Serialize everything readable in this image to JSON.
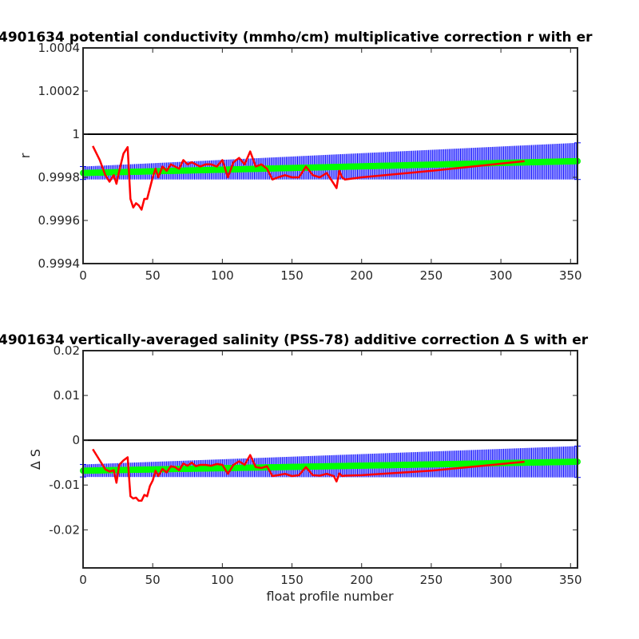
{
  "colors": {
    "median": "#ff0000",
    "fit": "#00ff00",
    "error_bars": "#0000ff",
    "reference": "#000000",
    "axes": "#262626"
  },
  "chart_data": [
    {
      "type": "line",
      "title": "4901634 potential conductivity (mmho/cm) multiplicative correction r with er",
      "xlabel": "",
      "ylabel": "r",
      "xlim": [
        0,
        355
      ],
      "ylim": [
        0.9994,
        1.0004
      ],
      "xticks": [
        "0",
        "50",
        "100",
        "150",
        "200",
        "250",
        "300",
        "350"
      ],
      "yticks": [
        "0.9994",
        "0.9996",
        "0.9998",
        "1",
        "1.0002",
        "1.0004"
      ],
      "grid": false,
      "reference_line": 1,
      "fit": {
        "x": [
          0,
          355
        ],
        "y": [
          0.99982,
          0.999875
        ],
        "err_start": 3e-05,
        "err_end": 8.5e-05
      },
      "series": [
        {
          "x": [
            7,
            12,
            16,
            19,
            22,
            24,
            26,
            29,
            32,
            34,
            36,
            38,
            40,
            42,
            44,
            46,
            48,
            50,
            52,
            54,
            57,
            60,
            63,
            66,
            69,
            72,
            75,
            78,
            81,
            84,
            88,
            92,
            96,
            100,
            104,
            108,
            112,
            116,
            120,
            124,
            128,
            132,
            136,
            140,
            145,
            150,
            155,
            160,
            165,
            170,
            175,
            180,
            182,
            184,
            186,
            188,
            200,
            250,
            317
          ],
          "y": [
            0.999945,
            0.99988,
            0.99981,
            0.99978,
            0.99981,
            0.99977,
            0.99983,
            0.99991,
            0.99994,
            0.9997,
            0.99966,
            0.99968,
            0.99967,
            0.99965,
            0.9997,
            0.9997,
            0.99975,
            0.9998,
            0.99984,
            0.9998,
            0.99985,
            0.99983,
            0.99986,
            0.99985,
            0.99984,
            0.99988,
            0.99986,
            0.99987,
            0.99986,
            0.99985,
            0.99986,
            0.99986,
            0.99985,
            0.99988,
            0.9998,
            0.99987,
            0.99989,
            0.99986,
            0.99992,
            0.99985,
            0.99986,
            0.99984,
            0.99979,
            0.9998,
            0.99981,
            0.9998,
            0.9998,
            0.99985,
            0.99981,
            0.9998,
            0.99982,
            0.99977,
            0.99975,
            0.99983,
            0.9998,
            0.99979,
            0.9998,
            0.99983,
            0.999875
          ]
        }
      ]
    },
    {
      "type": "line",
      "title": "4901634 vertically-averaged salinity (PSS-78) additive correction Δ S with er",
      "xlabel": "float profile number",
      "ylabel": "Δ S",
      "xlim": [
        0,
        355
      ],
      "ylim": [
        -0.0285,
        0.02
      ],
      "xticks": [
        "0",
        "50",
        "100",
        "150",
        "200",
        "250",
        "300",
        "350"
      ],
      "yticks": [
        "-0.02",
        "-0.01",
        "0",
        "0.01",
        "0.02"
      ],
      "grid": false,
      "reference_line": 0,
      "fit": {
        "x": [
          0,
          355
        ],
        "y": [
          -0.0068,
          -0.0048
        ],
        "err_start": 0.0014,
        "err_end": 0.0035
      },
      "series": [
        {
          "x": [
            7,
            12,
            16,
            19,
            22,
            24,
            26,
            29,
            32,
            34,
            36,
            38,
            40,
            42,
            44,
            46,
            48,
            50,
            52,
            54,
            57,
            60,
            63,
            66,
            69,
            72,
            75,
            78,
            81,
            84,
            88,
            92,
            96,
            100,
            104,
            108,
            112,
            116,
            120,
            124,
            128,
            132,
            136,
            140,
            145,
            150,
            155,
            160,
            165,
            170,
            175,
            180,
            182,
            184,
            186,
            188,
            200,
            250,
            317
          ],
          "y": [
            -0.002,
            -0.0045,
            -0.0065,
            -0.007,
            -0.0067,
            -0.0095,
            -0.0055,
            -0.0045,
            -0.0038,
            -0.0125,
            -0.013,
            -0.0128,
            -0.0135,
            -0.0135,
            -0.0122,
            -0.0125,
            -0.0102,
            -0.009,
            -0.0068,
            -0.008,
            -0.0064,
            -0.0072,
            -0.0058,
            -0.006,
            -0.0067,
            -0.0052,
            -0.0057,
            -0.005,
            -0.0058,
            -0.0055,
            -0.0055,
            -0.0057,
            -0.0053,
            -0.0055,
            -0.0075,
            -0.0055,
            -0.0047,
            -0.0055,
            -0.0033,
            -0.006,
            -0.0062,
            -0.0058,
            -0.008,
            -0.0078,
            -0.0075,
            -0.008,
            -0.0078,
            -0.006,
            -0.0078,
            -0.0079,
            -0.0075,
            -0.008,
            -0.0092,
            -0.0074,
            -0.008,
            -0.0079,
            -0.0078,
            -0.0068,
            -0.0048
          ]
        }
      ]
    }
  ]
}
